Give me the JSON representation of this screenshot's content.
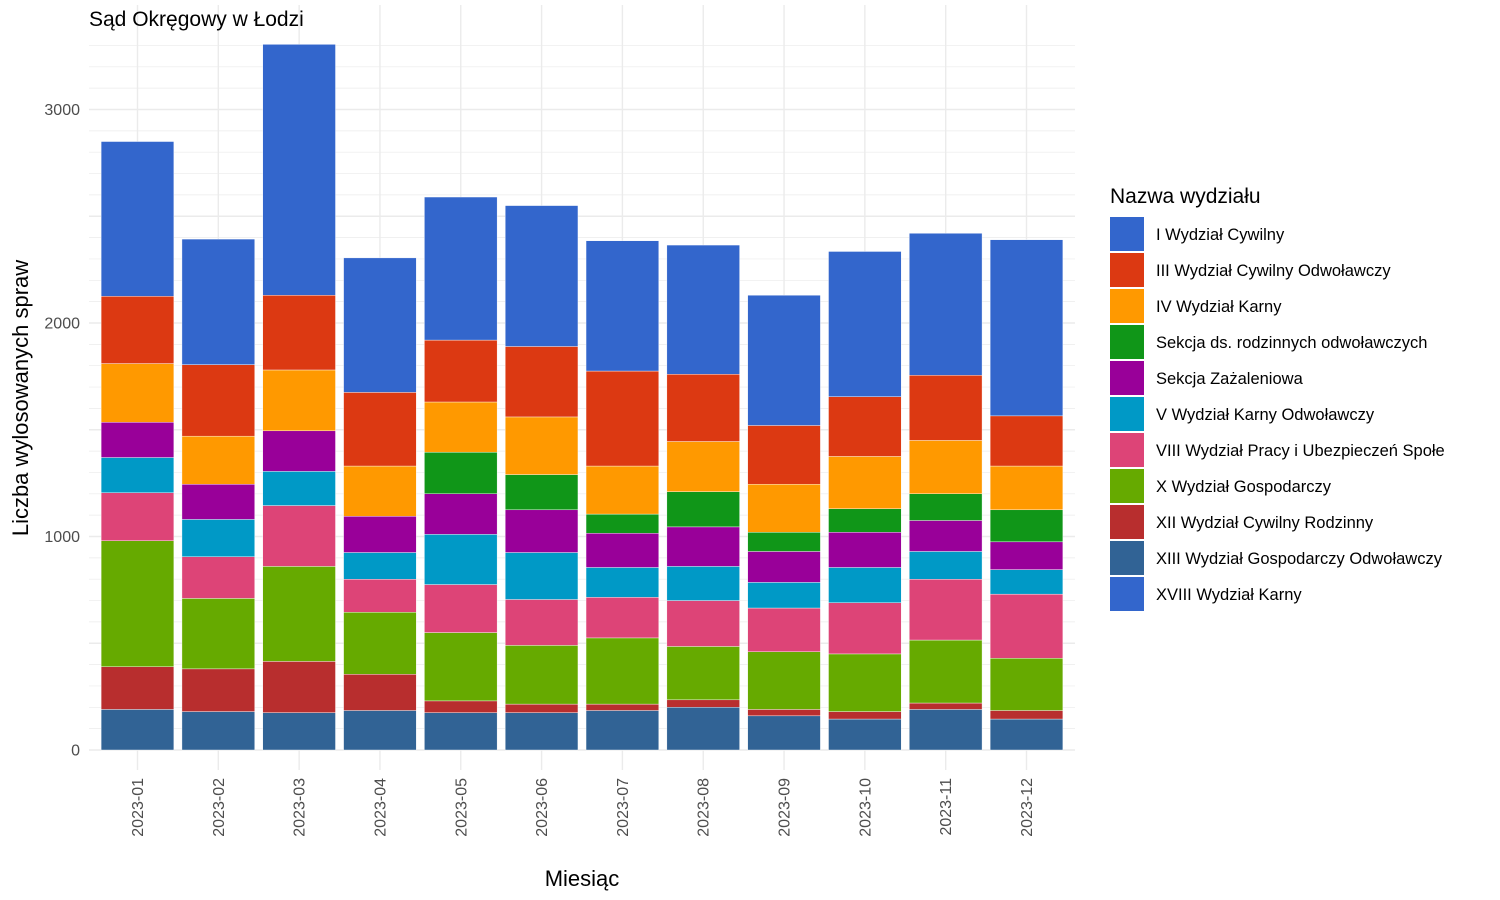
{
  "chart_data": {
    "type": "bar",
    "stacked": true,
    "title": "Sąd Okręgowy w Łodzi",
    "xlabel": "Miesiąc",
    "ylabel": "Liczba wylosowanych spraw",
    "ylim": [
      0,
      3300
    ],
    "yticks": [
      0,
      1000,
      2000,
      3000
    ],
    "grid": true,
    "legend_title": "Nazwa wydziału",
    "legend_position": "right",
    "categories": [
      "2023-01",
      "2023-02",
      "2023-03",
      "2023-04",
      "2023-05",
      "2023-06",
      "2023-07",
      "2023-08",
      "2023-09",
      "2023-10",
      "2023-11",
      "2023-12"
    ],
    "series": [
      {
        "name": "I Wydział Cywilny",
        "color": "#3366CC",
        "values": [
          725,
          588,
          1175,
          630,
          670,
          660,
          610,
          605,
          610,
          680,
          665,
          825
        ]
      },
      {
        "name": "III Wydział Cywilny Odwoławczy",
        "color": "#DC3912",
        "values": [
          315,
          335,
          350,
          345,
          290,
          330,
          445,
          315,
          275,
          280,
          305,
          235
        ]
      },
      {
        "name": "IV Wydział Karny",
        "color": "#FF9900",
        "values": [
          275,
          225,
          285,
          235,
          235,
          270,
          225,
          235,
          225,
          245,
          250,
          205
        ]
      },
      {
        "name": "Sekcja ds. rodzinnych odwoławczych",
        "color": "#109618",
        "values": [
          0,
          0,
          0,
          0,
          195,
          165,
          90,
          165,
          90,
          110,
          125,
          150
        ]
      },
      {
        "name": "Sekcja Zażaleniowa",
        "color": "#990099",
        "values": [
          165,
          165,
          190,
          170,
          190,
          200,
          160,
          185,
          145,
          165,
          145,
          130
        ]
      },
      {
        "name": "V Wydział Karny Odwoławczy",
        "color": "#0099C6",
        "values": [
          165,
          175,
          160,
          125,
          235,
          220,
          140,
          160,
          120,
          165,
          130,
          115
        ]
      },
      {
        "name": "VIII Wydział Pracy i Ubezpieczeń Społe",
        "color": "#DD4477",
        "values": [
          225,
          195,
          285,
          155,
          225,
          215,
          190,
          215,
          205,
          240,
          285,
          300
        ]
      },
      {
        "name": "X Wydział Gospodarczy",
        "color": "#66AA00",
        "values": [
          590,
          330,
          445,
          290,
          320,
          275,
          310,
          250,
          270,
          270,
          295,
          245
        ]
      },
      {
        "name": "XII Wydział Cywilny Rodzinny",
        "color": "#B82E2E",
        "values": [
          200,
          200,
          240,
          170,
          55,
          40,
          30,
          35,
          30,
          35,
          30,
          40
        ]
      },
      {
        "name": "XIII Wydział Gospodarczy Odwoławczy",
        "color": "#316395",
        "values": [
          190,
          180,
          175,
          185,
          175,
          175,
          185,
          200,
          160,
          145,
          190,
          145
        ]
      },
      {
        "name": "XVIII Wydział Karny",
        "color": "#3366CC",
        "values": [
          0,
          0,
          0,
          0,
          0,
          0,
          0,
          0,
          0,
          0,
          0,
          0
        ]
      }
    ]
  }
}
